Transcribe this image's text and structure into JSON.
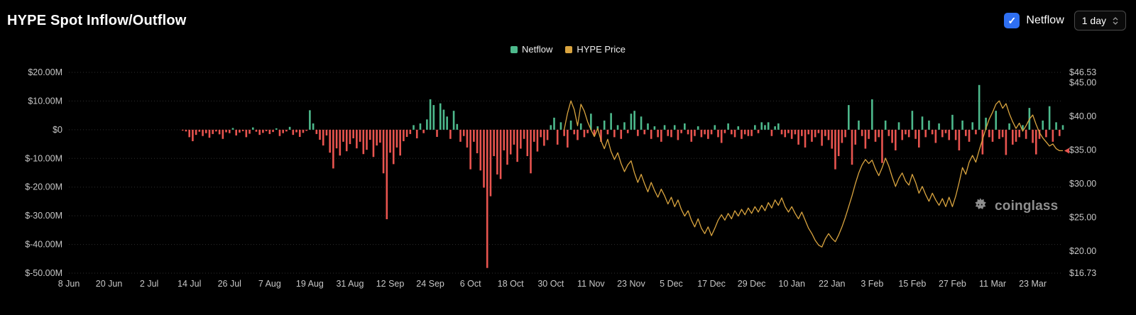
{
  "header": {
    "title": "HYPE Spot Inflow/Outflow",
    "netflow_checkbox": {
      "label": "Netflow",
      "checked": true
    },
    "interval_select": {
      "value": "1 day"
    }
  },
  "legend": {
    "items": [
      {
        "label": "Netflow",
        "color": "#4db98c"
      },
      {
        "label": "HYPE Price",
        "color": "#d9a43f"
      }
    ]
  },
  "watermark": {
    "text": "coinglass"
  },
  "colors": {
    "background": "#000000",
    "checkbox_blue": "#2e6ff2",
    "bar_positive": "#4db98c",
    "bar_negative": "#e8544f",
    "price_line": "#d9a43f",
    "grid": "#2f2f2f",
    "axis_text": "#c7c7c7"
  },
  "chart_data": {
    "type": "bar+line",
    "title": "HYPE Spot Inflow/Outflow",
    "interval": "1 day",
    "grid": "horizontal-dotted",
    "legend_position": "top-center",
    "x_tick_every": 12,
    "x_tick_labels": [
      "8 Jun",
      "20 Jun",
      "2 Jul",
      "14 Jul",
      "26 Jul",
      "7 Aug",
      "19 Aug",
      "31 Aug",
      "12 Sep",
      "24 Sep",
      "6 Oct",
      "18 Oct",
      "30 Oct",
      "11 Nov",
      "23 Nov",
      "5 Dec",
      "17 Dec",
      "29 Dec",
      "10 Jan",
      "22 Jan",
      "3 Feb",
      "15 Feb",
      "27 Feb",
      "11 Mar",
      "23 Mar"
    ],
    "left_axis": {
      "unit": "USD millions",
      "min": -50,
      "max": 20,
      "ticks": [
        {
          "value": 20,
          "label": "$20.00M"
        },
        {
          "value": 10,
          "label": "$10.00M"
        },
        {
          "value": 0,
          "label": "$0"
        },
        {
          "value": -10,
          "label": "$-10.00M"
        },
        {
          "value": -20,
          "label": "$-20.00M"
        },
        {
          "value": -30,
          "label": "$-30.00M"
        },
        {
          "value": -40,
          "label": "$-40.00M"
        },
        {
          "value": -50,
          "label": "$-50.00M"
        }
      ]
    },
    "right_axis": {
      "unit": "USD",
      "min": 16.73,
      "max": 46.53,
      "ticks": [
        {
          "value": 46.53,
          "label": "$46.53"
        },
        {
          "value": 45,
          "label": "$45.00"
        },
        {
          "value": 40,
          "label": "$40.00"
        },
        {
          "value": 35,
          "label": "$35.00"
        },
        {
          "value": 30,
          "label": "$30.00"
        },
        {
          "value": 25,
          "label": "$25.00"
        },
        {
          "value": 20,
          "label": "$20.00"
        },
        {
          "value": 16.73,
          "label": "$16.73"
        }
      ]
    },
    "series": [
      {
        "name": "Netflow",
        "type": "bar",
        "unit": "$M",
        "color_positive": "#4db98c",
        "color_negative": "#e8544f",
        "values": [
          0,
          0,
          0,
          0,
          0,
          0,
          0,
          0,
          0,
          0,
          0,
          0,
          0,
          0,
          0,
          0,
          0,
          0,
          0,
          0,
          0,
          0,
          0,
          0,
          0,
          0,
          0,
          0,
          0,
          0,
          0,
          0,
          0,
          0,
          -0.3,
          -0.6,
          -2.6,
          -4.0,
          -1.8,
          -0.7,
          -2.2,
          -1.2,
          -2.8,
          -1.5,
          -0.6,
          -1.6,
          -3.2,
          -0.9,
          -1.2,
          0.6,
          -2.0,
          -1.0,
          -0.5,
          -2.6,
          -1.4,
          0.8,
          -0.7,
          -1.8,
          -1.1,
          -0.5,
          -1.5,
          -0.8,
          0.5,
          -2.2,
          -1.2,
          -0.6,
          1.0,
          -1.8,
          -0.9,
          -2.5,
          -1.1,
          -0.4,
          6.8,
          2.2,
          -1.5,
          -3.5,
          -5.5,
          -2.0,
          -8.0,
          -13.5,
          -6.5,
          -9.0,
          -4.2,
          -7.5,
          -5.0,
          -3.0,
          -6.5,
          -4.2,
          -8.5,
          -7.0,
          -3.5,
          -9.5,
          -5.5,
          -4.5,
          -15.2,
          -31.2,
          -8.0,
          -12.0,
          -6.2,
          -9.0,
          -4.0,
          -2.5,
          -1.5,
          1.6,
          -3.0,
          2.2,
          -1.2,
          3.6,
          10.6,
          8.6,
          -2.5,
          9.2,
          7.0,
          4.6,
          -3.2,
          6.6,
          2.0,
          -4.2,
          -2.2,
          -6.2,
          -13.8,
          -4.2,
          -8.2,
          -14.2,
          -20.2,
          -48.2,
          -23.2,
          -9.2,
          -15.6,
          -17.2,
          -7.2,
          -12.2,
          -8.6,
          -5.2,
          -11.2,
          -6.6,
          -3.2,
          -9.2,
          -15.2,
          -4.2,
          -7.6,
          -2.6,
          -5.6,
          -3.6,
          1.6,
          4.2,
          -5.2,
          2.6,
          -2.2,
          -6.2,
          3.2,
          -1.6,
          -3.6,
          2.2,
          -2.6,
          -1.2,
          5.6,
          -2.2,
          1.2,
          -4.2,
          3.2,
          -1.6,
          5.8,
          -2.6,
          1.6,
          -3.2,
          2.6,
          -1.2,
          5.6,
          6.6,
          -2.2,
          4.6,
          -1.6,
          2.2,
          -3.2,
          1.2,
          -2.6,
          -4.2,
          1.6,
          -2.2,
          -2.6,
          1.6,
          -3.6,
          -1.2,
          2.2,
          -1.6,
          -4.2,
          -2.2,
          1.2,
          -2.6,
          -1.6,
          -3.2,
          -1.6,
          1.6,
          -2.6,
          -4.6,
          -1.2,
          2.2,
          -1.6,
          -2.6,
          1.2,
          -3.2,
          -1.6,
          -2.2,
          -2.2,
          1.6,
          -1.2,
          2.6,
          1.6,
          2.6,
          -2.2,
          1.2,
          2.2,
          -1.6,
          -2.6,
          -1.2,
          -3.2,
          -1.6,
          -5.2,
          -2.2,
          -6.2,
          -1.6,
          -4.2,
          -2.6,
          -1.2,
          -5.6,
          -2.2,
          -3.6,
          -6.6,
          -13.8,
          -9.2,
          -4.6,
          -2.6,
          8.6,
          -12.2,
          -5.2,
          3.2,
          -2.2,
          -6.6,
          -3.2,
          10.6,
          -4.2,
          -2.6,
          -11.6,
          3.2,
          -2.2,
          -4.6,
          -7.2,
          2.6,
          -3.6,
          -1.6,
          -2.6,
          6.6,
          -3.2,
          -6.2,
          4.6,
          -2.6,
          3.2,
          -1.6,
          -4.6,
          2.2,
          -2.6,
          -1.2,
          -3.6,
          5.2,
          -3.6,
          -7.2,
          3.2,
          -2.2,
          -4.2,
          2.6,
          -1.6,
          15.6,
          -8.6,
          4.2,
          -2.6,
          -4.2,
          6.6,
          -3.2,
          -2.6,
          -8.8,
          2.2,
          -5.2,
          -4.2,
          -2.6,
          1.6,
          -3.2,
          7.6,
          -4.6,
          -8.6,
          -3.2,
          3.2,
          -2.6,
          8.2,
          -4.2,
          2.6,
          -2.2,
          1.6
        ]
      },
      {
        "name": "HYPE Price",
        "type": "line",
        "unit": "$",
        "color": "#d9a43f",
        "start_index": 148,
        "values": [
          38.0,
          40.5,
          42.3,
          41.0,
          38.6,
          41.8,
          40.8,
          39.2,
          38.0,
          37.0,
          38.2,
          36.4,
          35.2,
          36.6,
          34.8,
          33.6,
          34.6,
          33.0,
          31.8,
          32.8,
          33.4,
          31.6,
          30.2,
          31.4,
          30.0,
          28.8,
          30.2,
          29.0,
          28.0,
          29.2,
          28.2,
          27.0,
          28.0,
          26.6,
          27.6,
          26.2,
          25.2,
          26.0,
          24.6,
          23.6,
          24.8,
          23.4,
          22.6,
          23.6,
          22.3,
          23.4,
          24.6,
          25.4,
          24.6,
          25.6,
          24.8,
          26.0,
          25.2,
          26.2,
          25.4,
          26.4,
          25.6,
          26.6,
          25.8,
          26.8,
          26.0,
          27.2,
          26.4,
          27.6,
          26.8,
          27.9,
          26.6,
          25.8,
          26.6,
          25.6,
          24.8,
          25.8,
          24.6,
          23.4,
          22.6,
          21.6,
          20.9,
          20.6,
          21.8,
          22.6,
          21.9,
          21.4,
          22.4,
          23.6,
          25.0,
          26.6,
          28.2,
          30.0,
          31.6,
          32.8,
          33.6,
          33.0,
          33.5,
          32.2,
          31.2,
          32.4,
          33.8,
          32.6,
          31.0,
          29.6,
          30.8,
          31.6,
          30.4,
          29.8,
          31.4,
          30.2,
          28.6,
          29.6,
          28.4,
          27.4,
          28.6,
          27.6,
          26.8,
          27.8,
          26.6,
          28.0,
          26.6,
          28.2,
          30.2,
          32.4,
          31.4,
          33.2,
          34.2,
          33.2,
          35.0,
          36.6,
          38.2,
          39.6,
          40.6,
          41.8,
          42.3,
          41.2,
          41.9,
          40.4,
          39.2,
          38.2,
          39.0,
          37.8,
          38.6,
          39.6,
          40.2,
          38.8,
          37.6,
          36.8,
          36.2,
          35.6,
          35.9,
          35.2,
          34.9,
          34.9
        ]
      }
    ]
  }
}
